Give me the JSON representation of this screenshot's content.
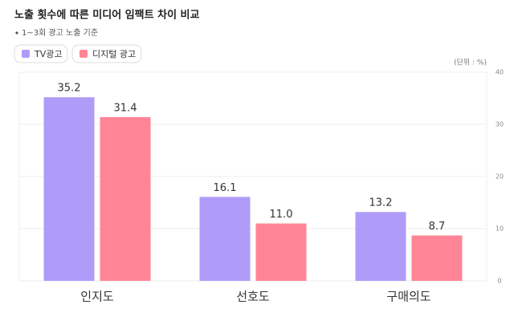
{
  "chart_data": {
    "type": "bar",
    "title": "노출 횟수에 따른 미디어 임팩트 차이 비교",
    "subtitle": "1~3회 광고 노출 기준",
    "unit_label": "(단위 : %)",
    "categories": [
      "인지도",
      "선호도",
      "구매의도"
    ],
    "series": [
      {
        "name": "TV광고",
        "color": "#af9cf9",
        "values": [
          35.2,
          16.1,
          13.2
        ]
      },
      {
        "name": "디지털 광고",
        "color": "#ff8596",
        "values": [
          31.4,
          11.0,
          8.7
        ],
        "value_labels": [
          "31.4",
          "11.0",
          "8.7"
        ]
      }
    ],
    "ylim": [
      0,
      40
    ],
    "yticks": [
      0,
      10,
      20,
      30,
      40
    ],
    "grid": true
  }
}
